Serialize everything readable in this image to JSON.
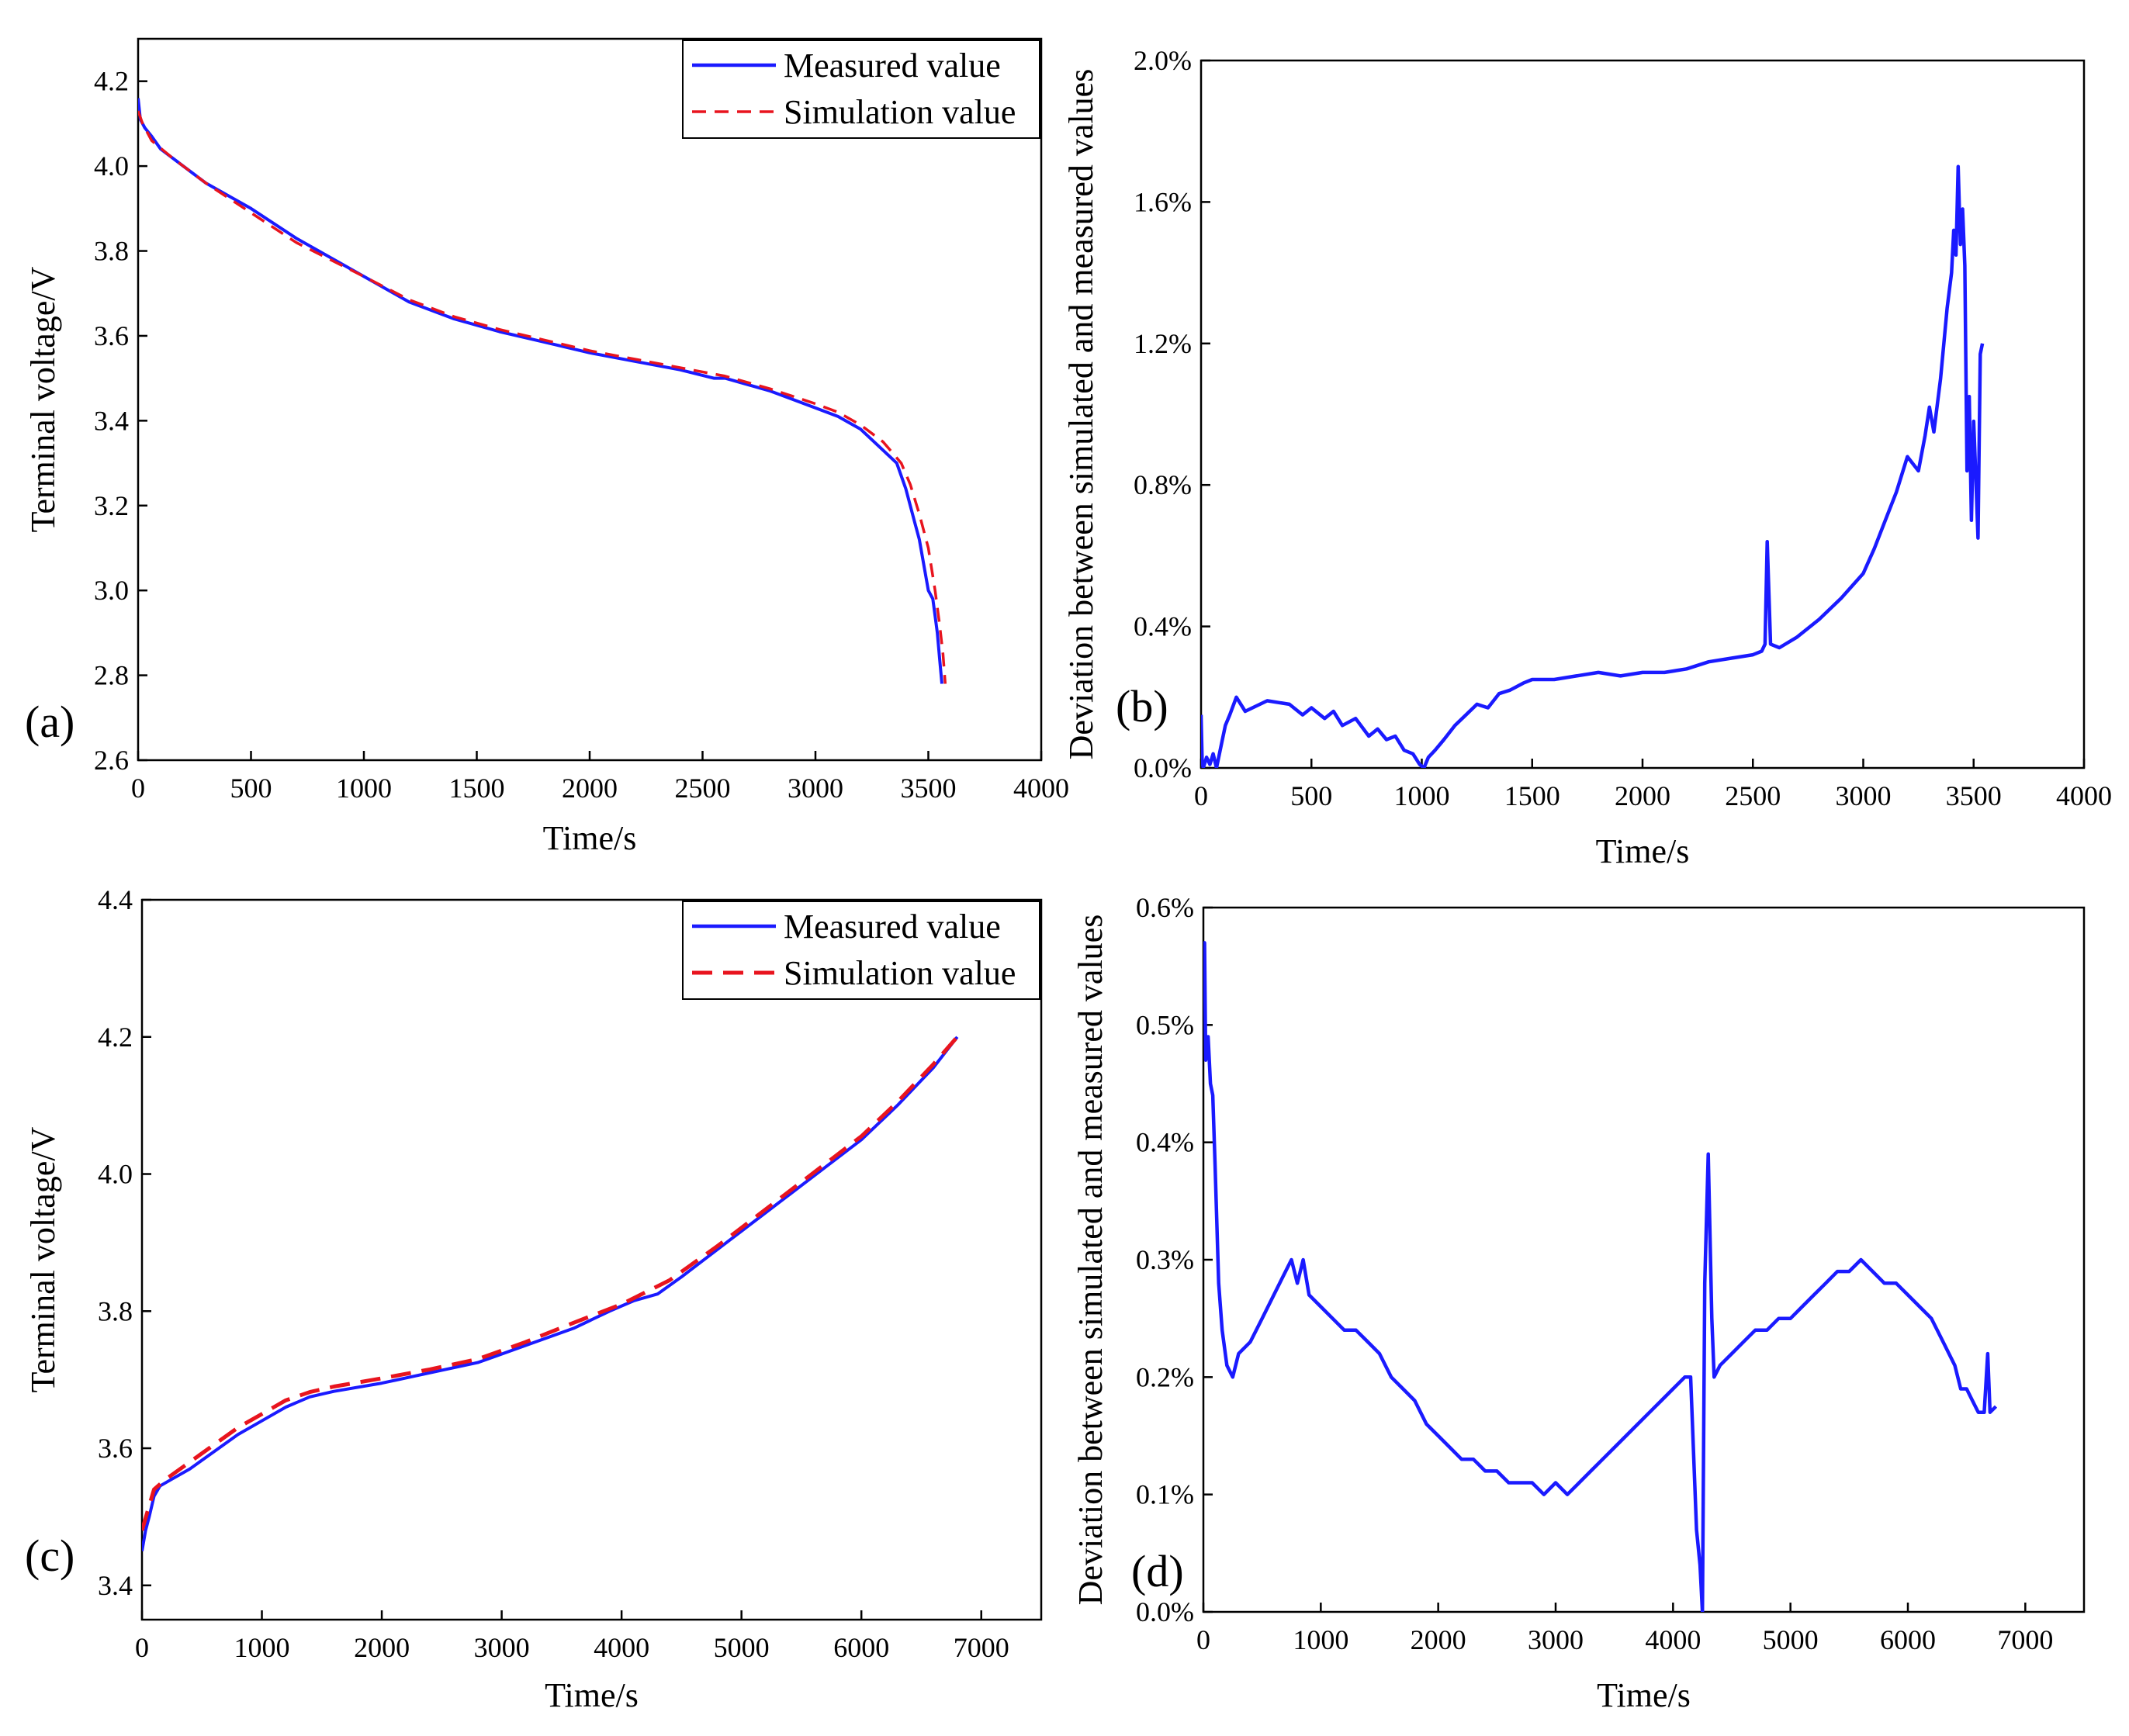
{
  "chart_data": [
    {
      "panel": "(a)",
      "type": "line",
      "xlabel": "Time/s",
      "ylabel": "Terminal voltage/V",
      "xlim": [
        0,
        4000
      ],
      "ylim": [
        2.6,
        4.3
      ],
      "xticks": [
        0,
        500,
        1000,
        1500,
        2000,
        2500,
        3000,
        3500,
        4000
      ],
      "yticks": [
        2.6,
        2.8,
        3.0,
        3.2,
        3.4,
        3.6,
        3.8,
        4.0,
        4.2
      ],
      "ytick_labels": [
        "2.6",
        "2.8",
        "3.0",
        "3.2",
        "3.4",
        "3.6",
        "3.8",
        "4.0",
        "4.2"
      ],
      "legend": {
        "position": "top-right",
        "entries": [
          "Measured value",
          "Simulation value"
        ]
      },
      "series": [
        {
          "name": "Measured value",
          "color": "#1a1aff",
          "style": "solid",
          "x": [
            0,
            10,
            30,
            60,
            100,
            200,
            300,
            500,
            700,
            1000,
            1200,
            1400,
            1600,
            1800,
            2000,
            2200,
            2400,
            2550,
            2600,
            2800,
            3000,
            3100,
            3200,
            3300,
            3360,
            3400,
            3420,
            3440,
            3460,
            3480,
            3500,
            3520,
            3530,
            3540,
            3550,
            3560
          ],
          "y": [
            4.16,
            4.11,
            4.09,
            4.07,
            4.04,
            4.0,
            3.96,
            3.9,
            3.83,
            3.74,
            3.68,
            3.64,
            3.61,
            3.585,
            3.56,
            3.54,
            3.52,
            3.5,
            3.5,
            3.47,
            3.43,
            3.41,
            3.38,
            3.33,
            3.3,
            3.24,
            3.2,
            3.16,
            3.12,
            3.06,
            3.0,
            2.98,
            2.94,
            2.9,
            2.84,
            2.78
          ]
        },
        {
          "name": "Simulation value",
          "color": "#e8141e",
          "style": "dashed",
          "x": [
            0,
            20,
            60,
            150,
            300,
            500,
            700,
            1000,
            1200,
            1400,
            1600,
            1800,
            2000,
            2200,
            2400,
            2600,
            2800,
            3000,
            3100,
            3200,
            3300,
            3380,
            3420,
            3460,
            3500,
            3530,
            3550,
            3565,
            3575
          ],
          "y": [
            4.13,
            4.1,
            4.06,
            4.02,
            3.96,
            3.89,
            3.82,
            3.74,
            3.685,
            3.645,
            3.615,
            3.59,
            3.565,
            3.545,
            3.525,
            3.505,
            3.475,
            3.44,
            3.42,
            3.39,
            3.35,
            3.3,
            3.25,
            3.18,
            3.1,
            3.0,
            2.92,
            2.85,
            2.78
          ]
        }
      ]
    },
    {
      "panel": "(b)",
      "type": "line",
      "xlabel": "Time/s",
      "ylabel": "Deviation between simulated and measured values",
      "xlim": [
        0,
        4000
      ],
      "ylim": [
        0,
        0.02
      ],
      "xticks": [
        0,
        500,
        1000,
        1500,
        2000,
        2500,
        3000,
        3500,
        4000
      ],
      "yticks": [
        0,
        0.004,
        0.008,
        0.012,
        0.016,
        0.02
      ],
      "ytick_labels": [
        "0.0%",
        "0.4%",
        "0.8%",
        "1.2%",
        "1.6%",
        "2.0%"
      ],
      "series": [
        {
          "name": "Deviation",
          "color": "#1a1aff",
          "style": "solid",
          "x": [
            0,
            5,
            10,
            25,
            40,
            55,
            70,
            90,
            110,
            130,
            160,
            200,
            300,
            400,
            460,
            500,
            560,
            600,
            640,
            700,
            760,
            800,
            840,
            880,
            920,
            960,
            990,
            1010,
            1030,
            1060,
            1100,
            1150,
            1200,
            1250,
            1300,
            1350,
            1400,
            1460,
            1500,
            1600,
            1700,
            1800,
            1900,
            2000,
            2100,
            2200,
            2300,
            2400,
            2500,
            2540,
            2555,
            2565,
            2580,
            2620,
            2700,
            2800,
            2900,
            3000,
            3050,
            3100,
            3150,
            3200,
            3250,
            3280,
            3300,
            3320,
            3350,
            3380,
            3400,
            3410,
            3420,
            3430,
            3440,
            3450,
            3460,
            3470,
            3480,
            3490,
            3500,
            3510,
            3520,
            3530,
            3540
          ],
          "y": [
            0.0015,
            0.0002,
            0.0,
            0.0003,
            0.0001,
            0.0004,
            0.0,
            0.0006,
            0.0012,
            0.0015,
            0.002,
            0.0016,
            0.0019,
            0.0018,
            0.0015,
            0.0017,
            0.0014,
            0.0016,
            0.0012,
            0.0014,
            0.0009,
            0.0011,
            0.0008,
            0.0009,
            0.0005,
            0.0004,
            0.0001,
            0.0,
            0.0003,
            0.0005,
            0.0008,
            0.0012,
            0.0015,
            0.0018,
            0.0017,
            0.0021,
            0.0022,
            0.0024,
            0.0025,
            0.0025,
            0.0026,
            0.0027,
            0.0026,
            0.0027,
            0.0027,
            0.0028,
            0.003,
            0.0031,
            0.0032,
            0.0033,
            0.0035,
            0.0064,
            0.0035,
            0.0034,
            0.0037,
            0.0042,
            0.0048,
            0.0055,
            0.0062,
            0.007,
            0.0078,
            0.0088,
            0.0084,
            0.0094,
            0.0102,
            0.0095,
            0.011,
            0.013,
            0.014,
            0.0152,
            0.0145,
            0.017,
            0.0148,
            0.0158,
            0.0142,
            0.0084,
            0.0105,
            0.007,
            0.0098,
            0.0082,
            0.0065,
            0.0117,
            0.012
          ]
        }
      ]
    },
    {
      "panel": "(c)",
      "type": "line",
      "xlabel": "Time/s",
      "ylabel": "Terminal voltage/V",
      "xlim": [
        0,
        7500
      ],
      "ylim": [
        3.35,
        4.4
      ],
      "xticks": [
        0,
        1000,
        2000,
        3000,
        4000,
        5000,
        6000,
        7000
      ],
      "yticks": [
        3.4,
        3.6,
        3.8,
        4.0,
        4.2,
        4.4
      ],
      "ytick_labels": [
        "3.4",
        "3.6",
        "3.8",
        "4.0",
        "4.2",
        "4.4"
      ],
      "legend": {
        "position": "top-right",
        "entries": [
          "Measured value",
          "Simulation value"
        ]
      },
      "series": [
        {
          "name": "Measured value",
          "color": "#1a1aff",
          "style": "solid",
          "x": [
            0,
            30,
            60,
            100,
            150,
            250,
            400,
            600,
            800,
            1000,
            1200,
            1400,
            1600,
            2000,
            2400,
            2800,
            3200,
            3600,
            3900,
            4100,
            4300,
            4500,
            4800,
            5100,
            5400,
            5700,
            6000,
            6300,
            6600,
            6800
          ],
          "y": [
            3.45,
            3.48,
            3.5,
            3.53,
            3.545,
            3.555,
            3.57,
            3.595,
            3.62,
            3.64,
            3.66,
            3.675,
            3.683,
            3.695,
            3.71,
            3.725,
            3.75,
            3.775,
            3.8,
            3.815,
            3.825,
            3.85,
            3.89,
            3.93,
            3.97,
            4.01,
            4.05,
            4.1,
            4.155,
            4.2
          ]
        },
        {
          "name": "Simulation value",
          "color": "#e8141e",
          "style": "dashed",
          "x": [
            0,
            50,
            100,
            200,
            400,
            600,
            800,
            1000,
            1200,
            1400,
            1600,
            2000,
            2400,
            2800,
            3200,
            3600,
            4000,
            4400,
            4800,
            5100,
            5400,
            5700,
            6000,
            6300,
            6600,
            6800
          ],
          "y": [
            3.48,
            3.51,
            3.54,
            3.555,
            3.58,
            3.605,
            3.63,
            3.65,
            3.67,
            3.682,
            3.69,
            3.702,
            3.715,
            3.73,
            3.755,
            3.783,
            3.81,
            3.845,
            3.895,
            3.935,
            3.975,
            4.015,
            4.055,
            4.105,
            4.16,
            4.2
          ]
        }
      ]
    },
    {
      "panel": "(d)",
      "type": "line",
      "xlabel": "Time/s",
      "ylabel": "Deviation between simulated and measured values",
      "xlim": [
        0,
        7500
      ],
      "ylim": [
        0,
        0.006
      ],
      "xticks": [
        0,
        1000,
        2000,
        3000,
        4000,
        5000,
        6000,
        7000
      ],
      "yticks": [
        0,
        0.001,
        0.002,
        0.003,
        0.004,
        0.005,
        0.006
      ],
      "ytick_labels": [
        "0.0%",
        "0.1%",
        "0.2%",
        "0.3%",
        "0.4%",
        "0.5%",
        "0.6%"
      ],
      "series": [
        {
          "name": "Deviation",
          "color": "#1a1aff",
          "style": "solid",
          "x": [
            0,
            10,
            20,
            40,
            60,
            80,
            100,
            130,
            160,
            200,
            250,
            300,
            400,
            500,
            600,
            700,
            750,
            800,
            850,
            900,
            1000,
            1100,
            1200,
            1300,
            1400,
            1500,
            1600,
            1700,
            1800,
            1900,
            2000,
            2100,
            2200,
            2300,
            2400,
            2500,
            2600,
            2700,
            2800,
            2900,
            3000,
            3100,
            3200,
            3300,
            3400,
            3500,
            3600,
            3700,
            3800,
            3900,
            4000,
            4100,
            4150,
            4200,
            4230,
            4250,
            4270,
            4300,
            4330,
            4350,
            4400,
            4500,
            4600,
            4700,
            4800,
            4900,
            5000,
            5100,
            5200,
            5300,
            5400,
            5500,
            5600,
            5700,
            5800,
            5900,
            6000,
            6100,
            6200,
            6300,
            6400,
            6450,
            6500,
            6550,
            6600,
            6630,
            6650,
            6680,
            6700,
            6750
          ],
          "y": [
            0.0052,
            0.0057,
            0.0047,
            0.0049,
            0.0045,
            0.0044,
            0.0038,
            0.0028,
            0.0024,
            0.0021,
            0.002,
            0.0022,
            0.0023,
            0.0025,
            0.0027,
            0.0029,
            0.003,
            0.0028,
            0.003,
            0.0027,
            0.0026,
            0.0025,
            0.0024,
            0.0024,
            0.0023,
            0.0022,
            0.002,
            0.0019,
            0.0018,
            0.0016,
            0.0015,
            0.0014,
            0.0013,
            0.0013,
            0.0012,
            0.0012,
            0.0011,
            0.0011,
            0.0011,
            0.001,
            0.0011,
            0.001,
            0.0011,
            0.0012,
            0.0013,
            0.0014,
            0.0015,
            0.0016,
            0.0017,
            0.0018,
            0.0019,
            0.002,
            0.002,
            0.0007,
            0.0004,
            0.0,
            0.0028,
            0.0039,
            0.0025,
            0.002,
            0.0021,
            0.0022,
            0.0023,
            0.0024,
            0.0024,
            0.0025,
            0.0025,
            0.0026,
            0.0027,
            0.0028,
            0.0029,
            0.0029,
            0.003,
            0.0029,
            0.0028,
            0.0028,
            0.0027,
            0.0026,
            0.0025,
            0.0023,
            0.0021,
            0.0019,
            0.0019,
            0.0018,
            0.0017,
            0.0017,
            0.0017,
            0.0022,
            0.0017,
            0.00175
          ]
        }
      ]
    }
  ]
}
